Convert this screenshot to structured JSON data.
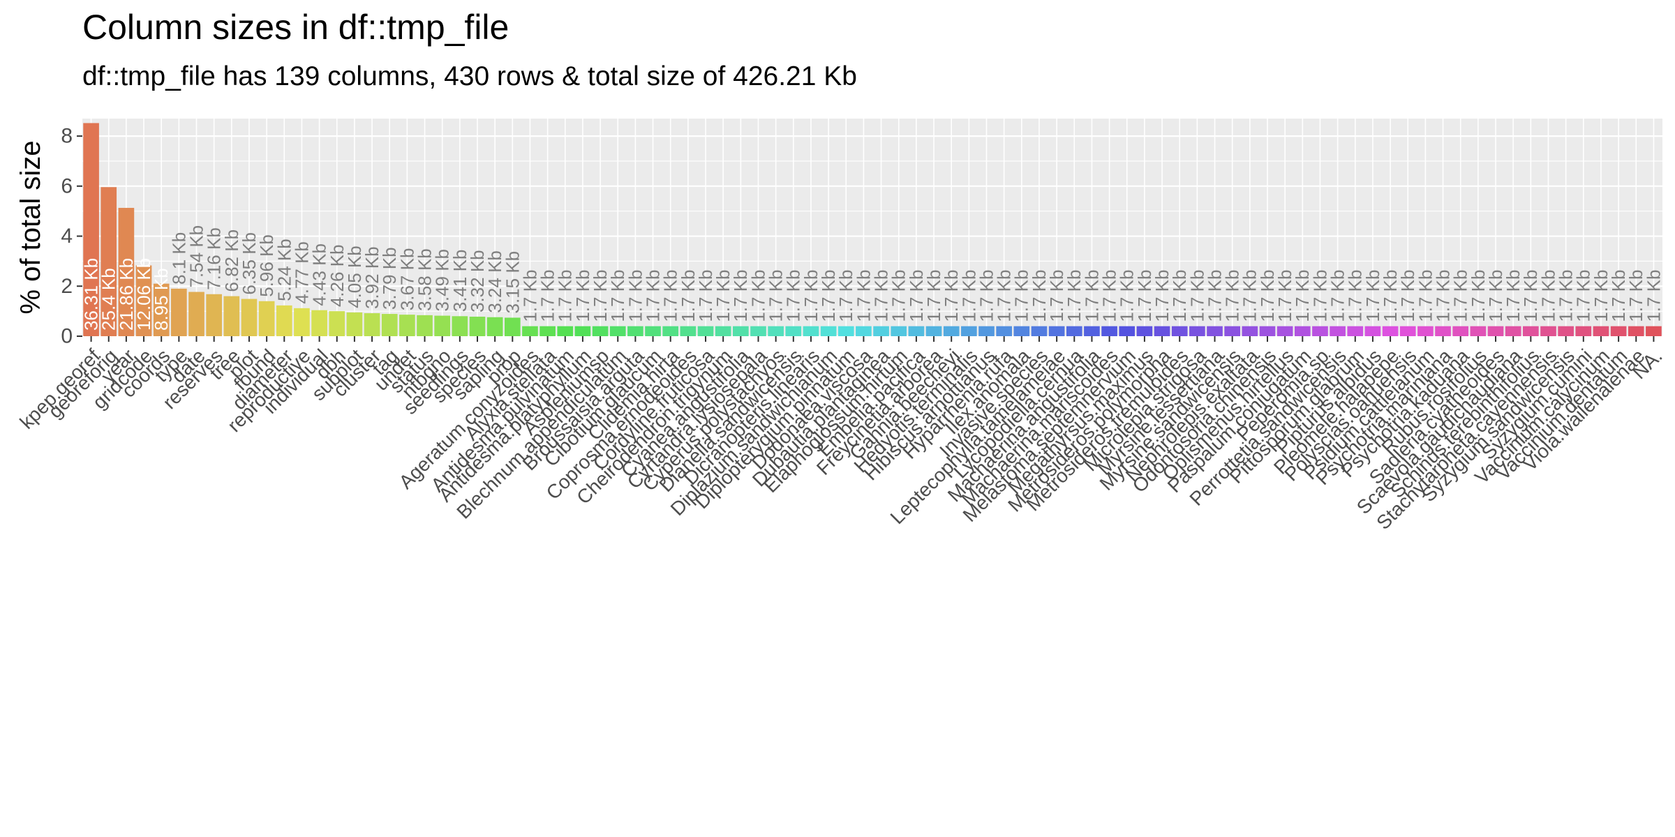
{
  "chart_data": {
    "type": "bar",
    "title": "Column sizes in df::tmp_file",
    "subtitle": "df::tmp_file has 139 columns, 430 rows & total size of 426.21 Kb",
    "xlabel": "",
    "ylabel": "% of total size",
    "ylim": [
      0,
      8.7
    ],
    "yticks": [
      0,
      2,
      4,
      6,
      8
    ],
    "grid": true,
    "legend": "none",
    "categories": [
      "kpep.georef",
      "georeforig",
      "year",
      "gridcode",
      "coords",
      "type",
      "date",
      "reserves",
      "tree",
      "plot",
      "found",
      "diameter",
      "reproductive",
      "individual",
      "dbh",
      "subplot",
      "cluster",
      "tag",
      "undet",
      "status",
      "ntbgno",
      "seedlings",
      "species",
      "sapling",
      "prop",
      "Ageratum.conyzoides",
      "Alyxia.stellata",
      "Antidesma.pulvinatum",
      "Antidesma.platyphyllum",
      "Aspleniumsp",
      "Blechnum.appendiculatum",
      "Broussaisia.arguta",
      "Cibotium.glaucum",
      "Clidemia.hirta",
      "Coprosma.ernodeoides",
      "Cordyline.fruticosa",
      "Cheirodendron.trigynum",
      "Cyanea.angustifolia",
      "Cyrtandra.lysiosepala",
      "Cyperus.polystachyos",
      "Dianella.sandwicensis",
      "Dicranopteris.linearis",
      "Diplazium.sandwichianum",
      "Diplopterygium.pinnatum",
      "Dodonaea.viscosa",
      "Dubautia.plantaginea",
      "Elaphoglossum.hirtum",
      "Embelia.pacifica",
      "Freycinetia.arborea",
      "Gahnia.beecheyi",
      "Hedyotis.terminalis",
      "Hibiscus.arnottianus",
      "Hyparrhenia.rufa",
      "Ilex.anomala",
      "Invasive.species",
      "Leptecophylla.tameiameiae",
      "Lycopodiella.cernua",
      "Machaerina.angustifolia",
      "Machaerina.mariscoides",
      "Melastoma.septemnervium",
      "Megathyrsus.maximus",
      "Metrosideros.polymorpha",
      "Metrosideros.tremuloides",
      "Microlepia.strigosa",
      "Myrsine.lessertiana",
      "Myrsine.sandwicensis",
      "Nephrolepis.exaltata",
      "Odontosoria.chinensis",
      "Oplismenus.hirtellus",
      "Paspalum.conjugatum",
      "Peperomia.sp",
      "Perrottetia.sandwicensis",
      "Pittosporum.glabrum",
      "Pipturus.albidus",
      "Pleomele.halapepe",
      "Polyscias.oahuensis",
      "Psidium.cattleianum",
      "Psychotria.mariniana",
      "Psychotria.kaduana",
      "Rubus.rosifolius",
      "Sadleria.cyatheoides",
      "Scaevola.gaudichaudiana",
      "Schinus.terebinthifolius",
      "Stachytarpheta.cayennensis",
      "Syzygium.sandwicensis",
      "Syzygium.cumini",
      "Vaccinium.calycinum",
      "Vaccinium.dentatum",
      "Viola.wailenalenae",
      "NA."
    ],
    "values": [
      8.52,
      5.96,
      5.13,
      2.83,
      2.1,
      1.9,
      1.77,
      1.68,
      1.6,
      1.49,
      1.4,
      1.23,
      1.12,
      1.04,
      1.0,
      0.95,
      0.92,
      0.89,
      0.86,
      0.84,
      0.82,
      0.8,
      0.78,
      0.76,
      0.74,
      0.4,
      0.4,
      0.4,
      0.4,
      0.4,
      0.4,
      0.4,
      0.4,
      0.4,
      0.4,
      0.4,
      0.4,
      0.4,
      0.4,
      0.4,
      0.4,
      0.4,
      0.4,
      0.4,
      0.4,
      0.4,
      0.4,
      0.4,
      0.4,
      0.4,
      0.4,
      0.4,
      0.4,
      0.4,
      0.4,
      0.4,
      0.4,
      0.4,
      0.4,
      0.4,
      0.4,
      0.4,
      0.4,
      0.4,
      0.4,
      0.4,
      0.4,
      0.4,
      0.4,
      0.4,
      0.4,
      0.4,
      0.4,
      0.4,
      0.4,
      0.4,
      0.4,
      0.4,
      0.4,
      0.4,
      0.4,
      0.4,
      0.4,
      0.4,
      0.4,
      0.4,
      0.4,
      0.4,
      0.4,
      0.4
    ],
    "bar_labels": [
      "36.31 Kb",
      "25.4 Kb",
      "21.86 Kb",
      "12.06 Kb",
      "8.95 Kb",
      "8.1 Kb",
      "7.54 Kb",
      "7.16 Kb",
      "6.82 Kb",
      "6.35 Kb",
      "5.96 Kb",
      "5.24 Kb",
      "4.77 Kb",
      "4.43 Kb",
      "4.26 Kb",
      "4.05 Kb",
      "3.92 Kb",
      "3.79 Kb",
      "3.67 Kb",
      "3.58 Kb",
      "3.49 Kb",
      "3.41 Kb",
      "3.32 Kb",
      "3.24 Kb",
      "3.15 Kb",
      "1.7 Kb",
      "1.7 Kb",
      "1.7 Kb",
      "1.7 Kb",
      "1.7 Kb",
      "1.7 Kb",
      "1.7 Kb",
      "1.7 Kb",
      "1.7 Kb",
      "1.7 Kb",
      "1.7 Kb",
      "1.7 Kb",
      "1.7 Kb",
      "1.7 Kb",
      "1.7 Kb",
      "1.7 Kb",
      "1.7 Kb",
      "1.7 Kb",
      "1.7 Kb",
      "1.7 Kb",
      "1.7 Kb",
      "1.7 Kb",
      "1.7 Kb",
      "1.7 Kb",
      "1.7 Kb",
      "1.7 Kb",
      "1.7 Kb",
      "1.7 Kb",
      "1.7 Kb",
      "1.7 Kb",
      "1.7 Kb",
      "1.7 Kb",
      "1.7 Kb",
      "1.7 Kb",
      "1.7 Kb",
      "1.7 Kb",
      "1.7 Kb",
      "1.7 Kb",
      "1.7 Kb",
      "1.7 Kb",
      "1.7 Kb",
      "1.7 Kb",
      "1.7 Kb",
      "1.7 Kb",
      "1.7 Kb",
      "1.7 Kb",
      "1.7 Kb",
      "1.7 Kb",
      "1.7 Kb",
      "1.7 Kb",
      "1.7 Kb",
      "1.7 Kb",
      "1.7 Kb",
      "1.7 Kb",
      "1.7 Kb",
      "1.7 Kb",
      "1.7 Kb",
      "1.7 Kb",
      "1.7 Kb",
      "1.7 Kb",
      "1.7 Kb",
      "1.7 Kb",
      "1.7 Kb",
      "1.7 Kb",
      "1.7 Kb"
    ],
    "colors": {
      "panel_background": "#EBEBEB",
      "gridline": "#FFFFFF",
      "tick_text": "#4D4D4D",
      "bar_label_inside": "#FFFFFF",
      "bar_label_outside": "#7F7F7F",
      "bar_fill": "hue gradient red → orange → olive → green → teal → blue → purple → pink"
    }
  }
}
